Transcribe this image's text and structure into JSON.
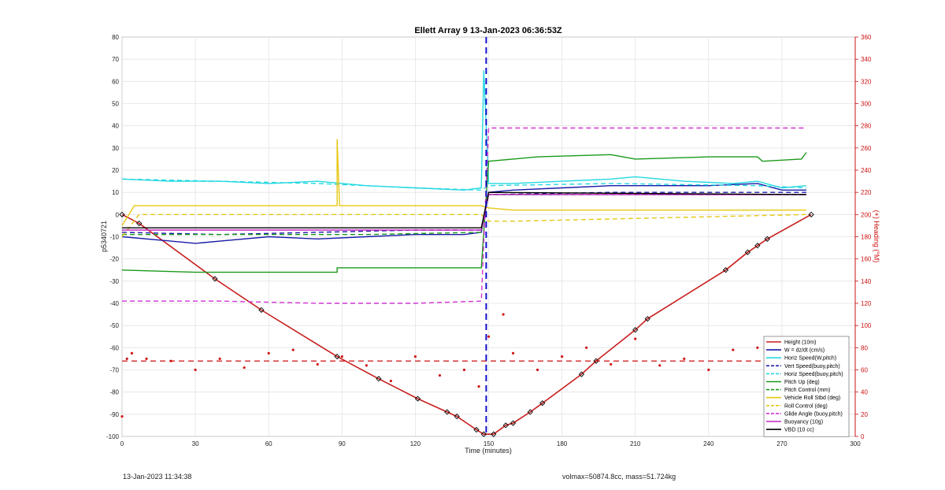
{
  "chart_data": {
    "type": "line",
    "title": "Ellett Array 9 13-Jan-2023 06:36:53Z",
    "xlabel": "Time (minutes)",
    "ylabel": "p5340721",
    "ylabel_right": "(+) Heading (°M)",
    "xlim": [
      0,
      300
    ],
    "ylim": [
      -100,
      80
    ],
    "ylim_right": [
      0,
      360
    ],
    "x_ticks": [
      0,
      30,
      60,
      90,
      120,
      150,
      180,
      210,
      240,
      270,
      300
    ],
    "y_ticks": [
      80,
      70,
      60,
      50,
      40,
      30,
      20,
      10,
      0,
      -10,
      -20,
      -30,
      -40,
      -50,
      -60,
      -70,
      -80,
      -90,
      -100
    ],
    "y_ticks_right": [
      360,
      340,
      320,
      300,
      280,
      260,
      240,
      220,
      200,
      180,
      160,
      140,
      120,
      100,
      80,
      60,
      40,
      20,
      0
    ],
    "grid": true,
    "legend_position": "bottom-right",
    "vline_x": 149,
    "series": [
      {
        "name": "Height (10m)",
        "color": "#c81e1e",
        "style": "solid-markers",
        "points": [
          [
            0,
            0
          ],
          [
            7,
            -4
          ],
          [
            38,
            -29
          ],
          [
            57,
            -43
          ],
          [
            88,
            -64
          ],
          [
            105,
            -74
          ],
          [
            121,
            -83
          ],
          [
            133,
            -89
          ],
          [
            137,
            -91
          ],
          [
            145,
            -97
          ],
          [
            148,
            -99
          ],
          [
            152,
            -99
          ],
          [
            157,
            -95
          ],
          [
            160,
            -94
          ],
          [
            167,
            -89
          ],
          [
            172,
            -85
          ],
          [
            188,
            -72
          ],
          [
            194,
            -66
          ],
          [
            210,
            -52
          ],
          [
            215,
            -47
          ],
          [
            247,
            -25
          ],
          [
            256,
            -17
          ],
          [
            260,
            -14
          ],
          [
            264,
            -11
          ],
          [
            282,
            0
          ]
        ]
      },
      {
        "name": "W = dz/dt (cm/s)",
        "color": "#1a1aa8",
        "style": "solid",
        "points": [
          [
            0,
            -10
          ],
          [
            20,
            -12
          ],
          [
            30,
            -13
          ],
          [
            40,
            -12
          ],
          [
            60,
            -10
          ],
          [
            80,
            -11
          ],
          [
            100,
            -10
          ],
          [
            120,
            -9
          ],
          [
            140,
            -9
          ],
          [
            147,
            -8
          ],
          [
            150,
            10
          ],
          [
            160,
            11
          ],
          [
            180,
            12
          ],
          [
            200,
            13
          ],
          [
            220,
            13
          ],
          [
            240,
            13
          ],
          [
            260,
            14
          ],
          [
            270,
            11
          ],
          [
            280,
            11
          ]
        ]
      },
      {
        "name": "Horiz Speed(W,pitch)",
        "color": "#22d8e0",
        "style": "solid",
        "points": [
          [
            0,
            16
          ],
          [
            20,
            15
          ],
          [
            40,
            15
          ],
          [
            60,
            14
          ],
          [
            80,
            15
          ],
          [
            100,
            13
          ],
          [
            120,
            12
          ],
          [
            140,
            11
          ],
          [
            147,
            12
          ],
          [
            148,
            65
          ],
          [
            150,
            14
          ],
          [
            160,
            14
          ],
          [
            180,
            15
          ],
          [
            200,
            16
          ],
          [
            210,
            17
          ],
          [
            230,
            15
          ],
          [
            250,
            14
          ],
          [
            260,
            15
          ],
          [
            270,
            12
          ],
          [
            280,
            13
          ]
        ]
      },
      {
        "name": "Vert Speed(buoy,pitch)",
        "color": "#1a1aa8",
        "style": "dashed",
        "points": [
          [
            0,
            -8
          ],
          [
            40,
            -9
          ],
          [
            80,
            -8
          ],
          [
            120,
            -7
          ],
          [
            147,
            -7
          ],
          [
            150,
            9
          ],
          [
            200,
            10
          ],
          [
            260,
            10
          ],
          [
            280,
            10
          ]
        ]
      },
      {
        "name": "Horiz Speed(buoy,pitch)",
        "color": "#22d8e0",
        "style": "dashed",
        "points": [
          [
            0,
            16
          ],
          [
            40,
            15
          ],
          [
            80,
            14
          ],
          [
            120,
            12
          ],
          [
            147,
            11
          ],
          [
            150,
            13
          ],
          [
            200,
            14
          ],
          [
            260,
            13
          ],
          [
            280,
            12
          ]
        ]
      },
      {
        "name": "Pitch Up (deg)",
        "color": "#1a9a1a",
        "style": "solid",
        "points": [
          [
            0,
            -25
          ],
          [
            30,
            -26
          ],
          [
            60,
            -26
          ],
          [
            88,
            -26
          ],
          [
            88,
            -24
          ],
          [
            120,
            -24
          ],
          [
            147,
            -24
          ],
          [
            150,
            24
          ],
          [
            160,
            25
          ],
          [
            170,
            26
          ],
          [
            200,
            27
          ],
          [
            210,
            25
          ],
          [
            240,
            26
          ],
          [
            260,
            26
          ],
          [
            262,
            24
          ],
          [
            278,
            25
          ],
          [
            280,
            28
          ]
        ]
      },
      {
        "name": "Pitch Control (mm)",
        "color": "#1a9a1a",
        "style": "dashed",
        "points": [
          [
            0,
            -9
          ],
          [
            60,
            -9
          ],
          [
            100,
            -9
          ],
          [
            147,
            -8
          ],
          [
            150,
            9
          ],
          [
            280,
            9
          ]
        ]
      },
      {
        "name": "Vehicle Roll Stbd (deg)",
        "color": "#e6c814",
        "style": "solid",
        "points": [
          [
            0,
            -5
          ],
          [
            5,
            4
          ],
          [
            40,
            4
          ],
          [
            88,
            4
          ],
          [
            88,
            34
          ],
          [
            89,
            4
          ],
          [
            147,
            4
          ],
          [
            150,
            3
          ],
          [
            160,
            2
          ],
          [
            170,
            2
          ],
          [
            200,
            2
          ],
          [
            240,
            2
          ],
          [
            280,
            2
          ]
        ]
      },
      {
        "name": "Roll Control (deg)",
        "color": "#e6c814",
        "style": "dashed",
        "points": [
          [
            0,
            -10
          ],
          [
            7,
            0
          ],
          [
            40,
            0
          ],
          [
            88,
            0
          ],
          [
            147,
            0
          ],
          [
            150,
            -3
          ],
          [
            160,
            -3
          ],
          [
            280,
            0
          ]
        ]
      },
      {
        "name": "Glide Angle (buoy,pitch)",
        "color": "#d432d4",
        "style": "dashed",
        "points": [
          [
            0,
            -39
          ],
          [
            40,
            -39
          ],
          [
            80,
            -40
          ],
          [
            120,
            -40
          ],
          [
            147,
            -39
          ],
          [
            150,
            39
          ],
          [
            200,
            39
          ],
          [
            260,
            39
          ],
          [
            280,
            39
          ]
        ]
      },
      {
        "name": "Buoyancy (10g)",
        "color": "#c026c0",
        "style": "solid",
        "points": [
          [
            0,
            -7
          ],
          [
            147,
            -7
          ],
          [
            150,
            9
          ],
          [
            280,
            9
          ]
        ]
      },
      {
        "name": "VBD (10 cc)",
        "color": "#000000",
        "style": "solid",
        "points": [
          [
            0,
            -6
          ],
          [
            147,
            -6
          ],
          [
            150,
            10
          ],
          [
            280,
            9
          ]
        ]
      },
      {
        "name": "Heading",
        "color": "#d01818",
        "style": "dots-right-axis",
        "points": [
          [
            0,
            18
          ],
          [
            2,
            70
          ],
          [
            4,
            75
          ],
          [
            10,
            70
          ],
          [
            20,
            68
          ],
          [
            30,
            60
          ],
          [
            40,
            70
          ],
          [
            50,
            62
          ],
          [
            60,
            75
          ],
          [
            70,
            78
          ],
          [
            80,
            65
          ],
          [
            90,
            72
          ],
          [
            100,
            64
          ],
          [
            110,
            50
          ],
          [
            120,
            72
          ],
          [
            130,
            55
          ],
          [
            140,
            60
          ],
          [
            146,
            45
          ],
          [
            150,
            90
          ],
          [
            156,
            110
          ],
          [
            160,
            75
          ],
          [
            170,
            60
          ],
          [
            180,
            72
          ],
          [
            190,
            80
          ],
          [
            200,
            65
          ],
          [
            210,
            88
          ],
          [
            220,
            64
          ],
          [
            230,
            70
          ],
          [
            240,
            60
          ],
          [
            250,
            78
          ],
          [
            260,
            80
          ],
          [
            270,
            65
          ],
          [
            280,
            68
          ]
        ]
      }
    ],
    "heading_mean": 68
  },
  "footer": {
    "left_text": "13-Jan-2023 11:34:38",
    "right_text": "volmax=50874.8cc, mass=51.724kg"
  }
}
